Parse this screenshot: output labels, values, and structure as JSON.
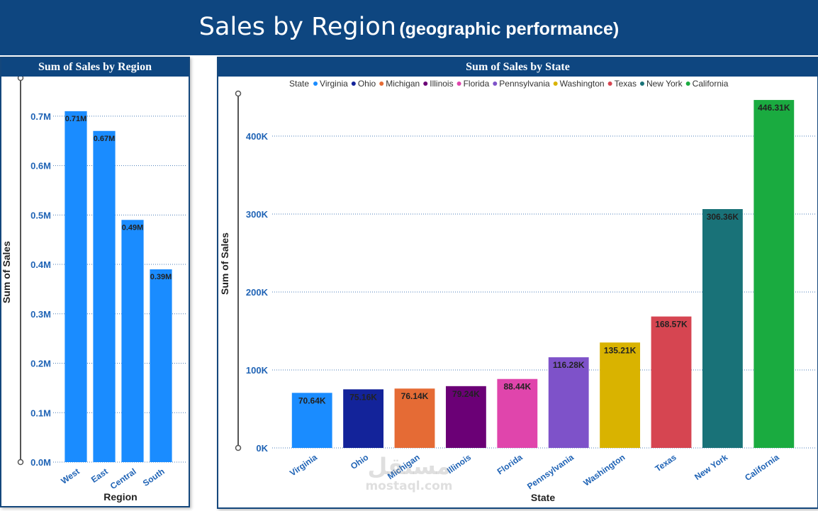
{
  "header": {
    "title": "Sales by Region",
    "subtitle": "(geographic performance)"
  },
  "colors": {
    "header_bg": "#0e4680",
    "region_bar": "#1a8cff"
  },
  "watermark": {
    "logo": "مستقل",
    "text": "mostaql.com"
  },
  "chart_data": [
    {
      "type": "bar",
      "title": "Sum of Sales by Region",
      "xlabel": "Region",
      "ylabel": "Sum of Sales",
      "categories": [
        "West",
        "East",
        "Central",
        "South"
      ],
      "values": [
        0.71,
        0.67,
        0.49,
        0.39
      ],
      "data_labels": [
        "0.71M",
        "0.67M",
        "0.49M",
        "0.39M"
      ],
      "ylim": [
        0,
        0.76
      ],
      "yticks": [
        0,
        0.1,
        0.2,
        0.3,
        0.4,
        0.5,
        0.6,
        0.7
      ],
      "ytick_labels": [
        "0.0M",
        "0.1M",
        "0.2M",
        "0.3M",
        "0.4M",
        "0.5M",
        "0.6M",
        "0.7M"
      ],
      "grid": true,
      "color": "#1a8cff"
    },
    {
      "type": "bar",
      "title": "Sum of Sales by State",
      "xlabel": "State",
      "ylabel": "Sum of Sales",
      "legend_title": "State",
      "legend_position": "top",
      "categories": [
        "Virginia",
        "Ohio",
        "Michigan",
        "Illinois",
        "Florida",
        "Pennsylvania",
        "Washington",
        "Texas",
        "New York",
        "California"
      ],
      "values": [
        70.64,
        75.16,
        76.14,
        79.24,
        88.44,
        116.28,
        135.21,
        168.57,
        306.36,
        446.31
      ],
      "data_labels": [
        "70.64K",
        "75.16K",
        "76.14K",
        "79.24K",
        "88.44K",
        "116.28K",
        "135.21K",
        "168.57K",
        "306.36K",
        "446.31K"
      ],
      "colors": [
        "#1a8cff",
        "#13239a",
        "#e56b35",
        "#6b0076",
        "#e045ac",
        "#7e52c9",
        "#d9b300",
        "#d64551",
        "#197278",
        "#1aab40"
      ],
      "ylim": [
        0,
        450
      ],
      "yticks": [
        0,
        100,
        200,
        300,
        400
      ],
      "ytick_labels": [
        "0K",
        "100K",
        "200K",
        "300K",
        "400K"
      ],
      "grid": true
    }
  ]
}
